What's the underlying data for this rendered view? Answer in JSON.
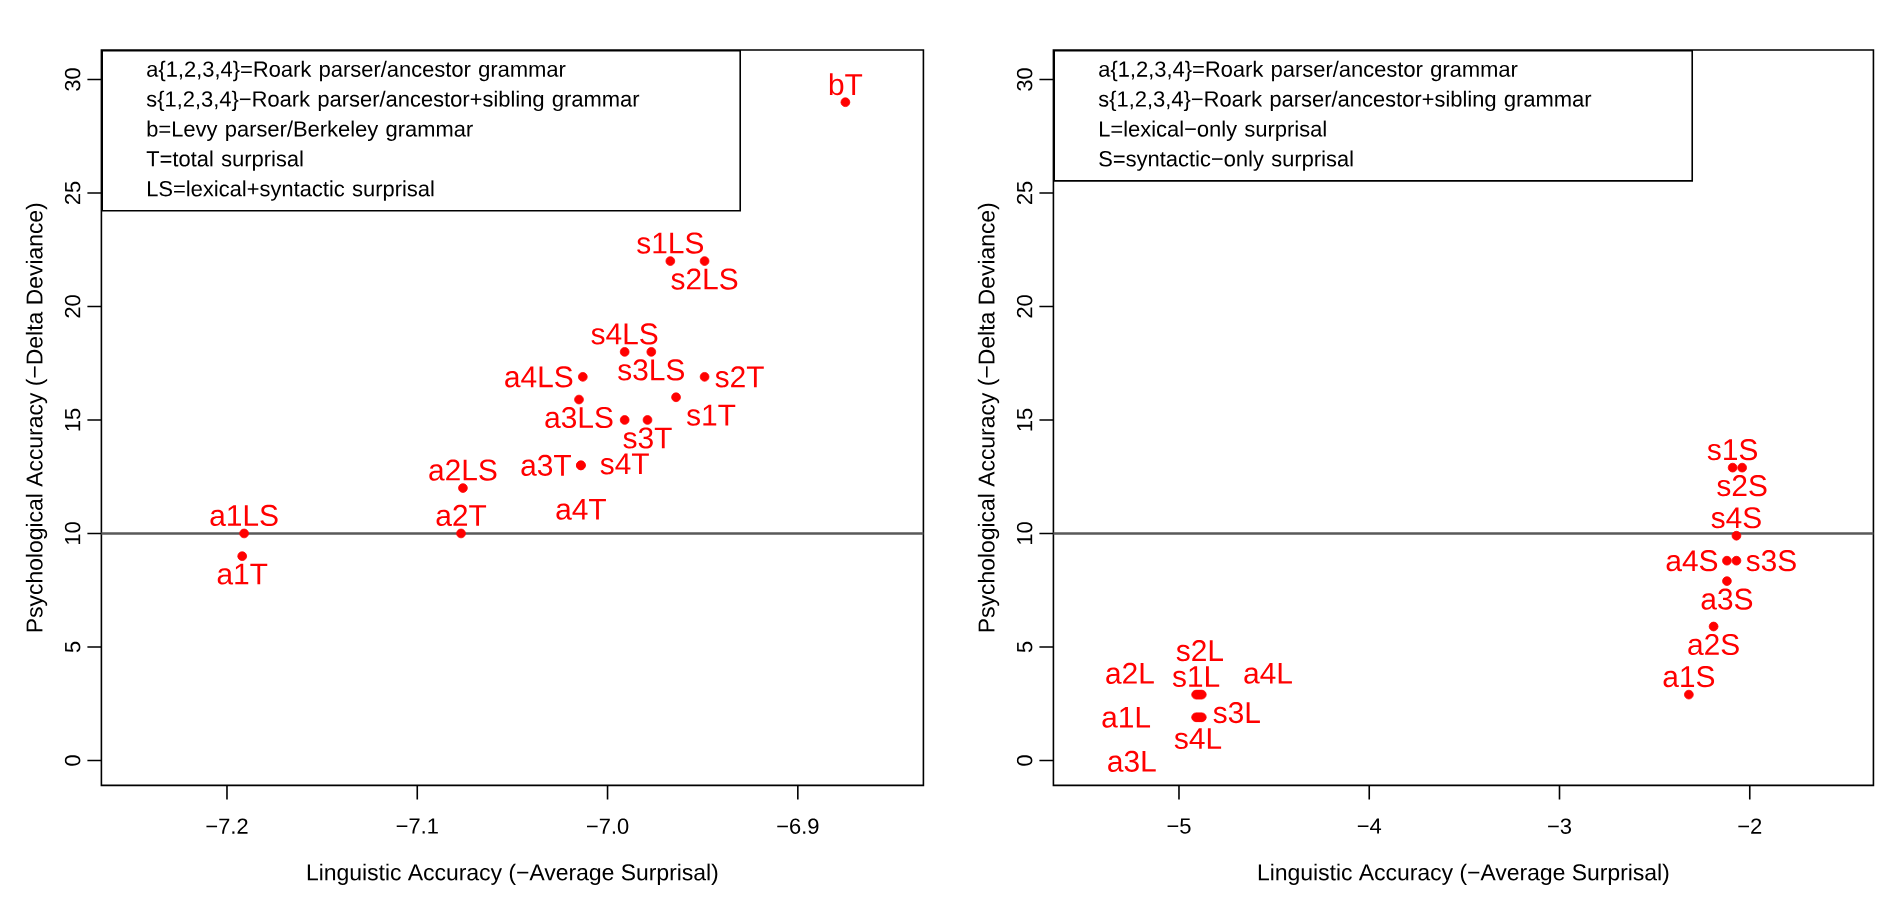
{
  "chart_data": [
    {
      "type": "scatter",
      "xlabel": "Linguistic Accuracy (−Average Surprisal)",
      "ylabel": "Psychological Accuracy (−Delta Deviance)",
      "marker": "circle",
      "annotations": [
        "a{1,2,3,4}=Roark parser/ancestor grammar",
        "s{1,2,3,4}−Roark parser/ancestor+sibling grammar",
        "b=Levy parser/Berkeley grammar",
        "T=total surprisal",
        "LS=lexical+syntactic surprisal"
      ],
      "xlim": [
        -7.266,
        -6.834
      ],
      "ylim": [
        -1.1,
        31.3
      ],
      "xticks": [
        {
          "value": -7.2,
          "label": "−7.2"
        },
        {
          "value": -7.1,
          "label": "−7.1"
        },
        {
          "value": -7.0,
          "label": "−7.0"
        },
        {
          "value": -6.9,
          "label": "−6.9"
        }
      ],
      "yticks": [
        0,
        5,
        10,
        15,
        20,
        25,
        30
      ],
      "ref_lines": [
        {
          "axis": "y",
          "value": 10,
          "color": "#595959"
        }
      ],
      "series": [
        {
          "color": "#ff0000",
          "x": [
            -6.875,
            -6.967,
            -6.949,
            -6.991,
            -6.977,
            -7.013,
            -6.949,
            -7.015,
            -6.964,
            -6.991,
            -6.979,
            -7.014,
            -7.014,
            -7.076,
            -7.077,
            -7.191,
            -7.192
          ],
          "values": [
            29.0,
            22.0,
            22.0,
            18.0,
            18.0,
            16.9,
            16.9,
            15.9,
            16.0,
            15.0,
            15.0,
            13.0,
            13.0,
            12.0,
            10.0,
            10.0,
            9.0
          ],
          "value_labels": [
            "bT",
            "s1LS",
            "s2LS",
            "s4LS",
            "s3LS",
            "a4LS",
            "s2T",
            "a3LS",
            "s1T",
            "s4T",
            "s3T",
            "a3T",
            "a4T",
            "a2LS",
            "a2T",
            "a1LS",
            "a1T"
          ]
        }
      ]
    },
    {
      "type": "scatter",
      "xlabel": "Linguistic Accuracy (−Average Surprisal)",
      "ylabel": "Psychological Accuracy (−Delta Deviance)",
      "marker": "circle",
      "annotations": [
        "a{1,2,3,4}=Roark parser/ancestor grammar",
        "s{1,2,3,4}−Roark parser/ancestor+sibling grammar",
        "L=lexical−only surprisal",
        "S=syntactic−only surprisal"
      ],
      "xlim": [
        -5.66,
        -1.35
      ],
      "ylim": [
        -1.1,
        31.3
      ],
      "xticks": [
        {
          "value": -5,
          "label": "−5"
        },
        {
          "value": -4,
          "label": "−4"
        },
        {
          "value": -3,
          "label": "−3"
        },
        {
          "value": -2,
          "label": "−2"
        }
      ],
      "yticks": [
        0,
        5,
        10,
        15,
        20,
        25,
        30
      ],
      "ref_lines": [
        {
          "axis": "y",
          "value": 10,
          "color": "#595959"
        }
      ],
      "series": [
        {
          "color": "#ff0000",
          "x": [
            -2.09,
            -2.04,
            -2.07,
            -2.12,
            -2.07,
            -2.12,
            -2.19,
            -2.32,
            -4.91,
            -4.89,
            -4.88,
            -4.9,
            -4.91,
            -4.89,
            -4.88,
            -4.9
          ],
          "values": [
            12.9,
            12.9,
            9.9,
            8.8,
            8.8,
            7.9,
            5.9,
            2.9,
            2.9,
            2.9,
            2.9,
            2.9,
            1.9,
            1.9,
            1.9,
            1.9
          ],
          "value_labels": [
            "s1S",
            "s2S",
            "s4S",
            "a4S",
            "s3S",
            "a3S",
            "a2S",
            "a1S",
            "s1L",
            "s2L",
            "s3L",
            "s4L",
            "a1L",
            "a2L",
            "a3L",
            "a4L"
          ]
        }
      ]
    }
  ]
}
